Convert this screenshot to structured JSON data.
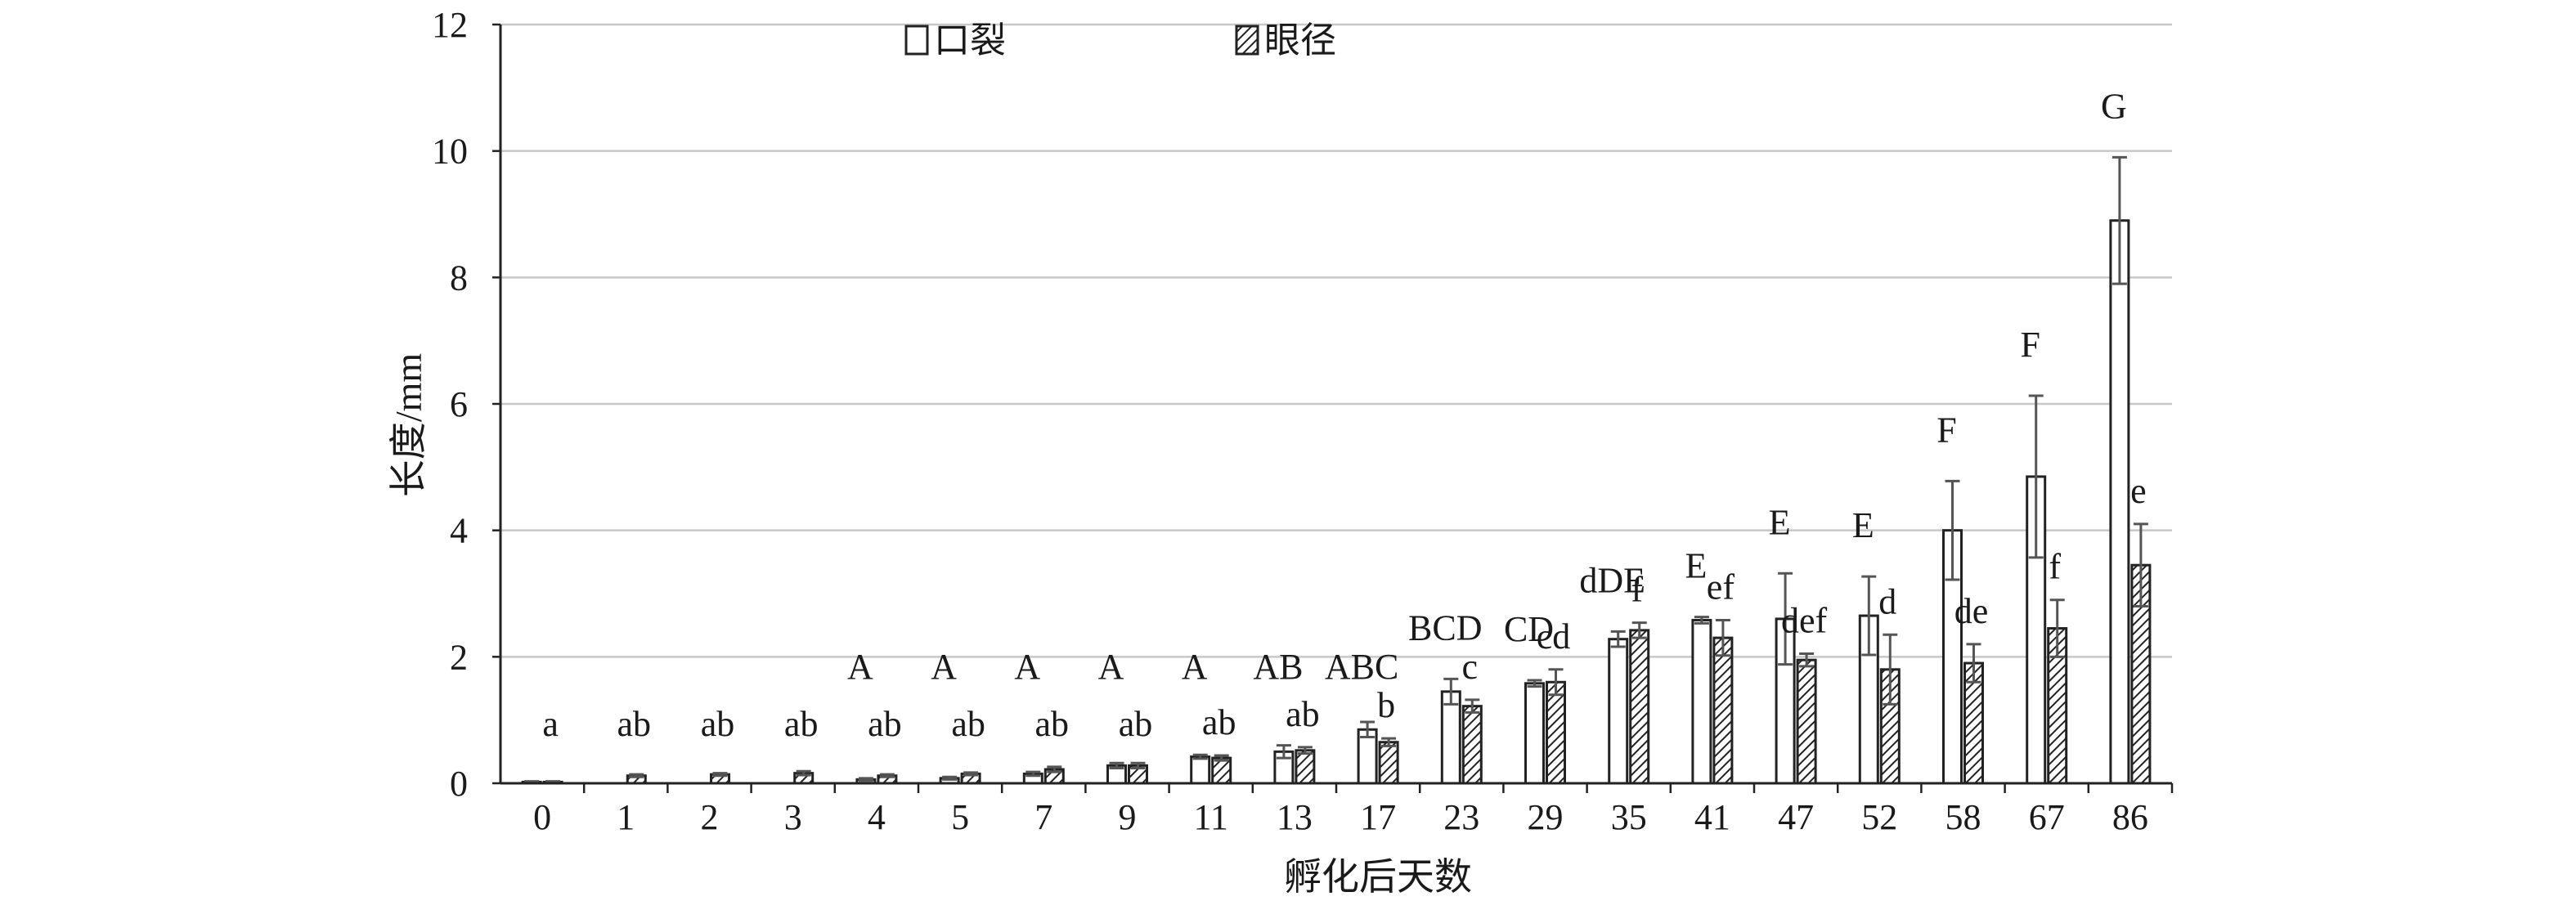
{
  "chart_data": {
    "type": "bar",
    "title": "",
    "xlabel": "孵化后天数",
    "ylabel": "长度/mm",
    "ylim": [
      0,
      12
    ],
    "yticks": [
      0,
      2,
      4,
      6,
      8,
      10,
      12
    ],
    "grid": true,
    "legend_position": "top-left",
    "categories": [
      "0",
      "1",
      "2",
      "3",
      "4",
      "5",
      "7",
      "9",
      "11",
      "13",
      "17",
      "23",
      "29",
      "35",
      "41",
      "47",
      "52",
      "58",
      "67",
      "86"
    ],
    "series": [
      {
        "name": "口裂",
        "pattern": "open",
        "values": [
          0.02,
          null,
          null,
          null,
          0.06,
          0.08,
          0.15,
          0.28,
          0.42,
          0.5,
          0.85,
          1.45,
          1.58,
          2.28,
          2.58,
          2.6,
          2.65,
          4.0,
          4.85,
          8.9
        ],
        "errors": [
          0.01,
          null,
          null,
          null,
          0.02,
          0.02,
          0.03,
          0.04,
          0.03,
          0.1,
          0.12,
          0.2,
          0.05,
          0.12,
          0.05,
          0.72,
          0.62,
          0.78,
          1.28,
          1.0
        ],
        "labels": [
          "",
          "",
          "",
          "",
          "A",
          "A",
          "A",
          "A",
          "A",
          "AB",
          "ABC",
          "BCD",
          "CD",
          "dDE",
          "E",
          "E",
          "E",
          "F",
          "F",
          "G"
        ]
      },
      {
        "name": "眼径",
        "pattern": "hatched",
        "values": [
          0.02,
          0.12,
          0.14,
          0.16,
          0.12,
          0.15,
          0.22,
          0.28,
          0.4,
          0.52,
          0.65,
          1.22,
          1.6,
          2.42,
          2.3,
          1.95,
          1.8,
          1.9,
          2.45,
          3.45
        ],
        "errors": [
          0.01,
          0.02,
          0.02,
          0.03,
          0.02,
          0.02,
          0.04,
          0.04,
          0.04,
          0.05,
          0.06,
          0.1,
          0.2,
          0.12,
          0.28,
          0.1,
          0.55,
          0.3,
          0.45,
          0.65
        ],
        "labels": [
          "a",
          "ab",
          "ab",
          "ab",
          "ab",
          "ab",
          "ab",
          "ab",
          "ab",
          "ab",
          "b",
          "c",
          "cd",
          "f",
          "ef",
          "def",
          "d",
          "de",
          "f",
          "e"
        ]
      }
    ],
    "colors": {
      "bar_stroke": "#222222",
      "bar_fill": "#ffffff",
      "hatch": "#222222",
      "grid": "#c8c8c8",
      "axis": "#222222",
      "error": "#555555"
    }
  }
}
